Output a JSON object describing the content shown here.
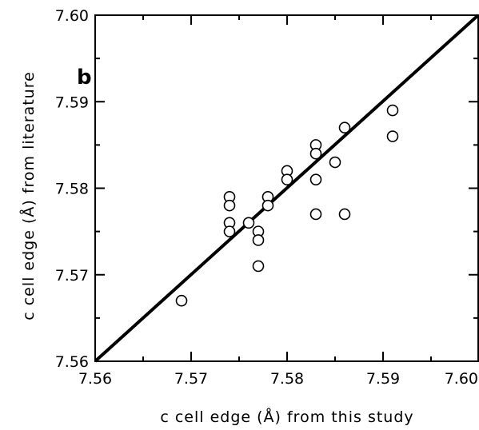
{
  "chart_data": {
    "type": "scatter",
    "panel_label": "b",
    "xlabel": "c  cell edge (Å) from this study",
    "ylabel": "c  cell edge (Å) from literature",
    "xlim": [
      7.56,
      7.6
    ],
    "ylim": [
      7.56,
      7.6
    ],
    "x_ticks": [
      "7.56",
      "7.57",
      "7.58",
      "7.59",
      "7.60"
    ],
    "y_ticks": [
      "7.56",
      "7.57",
      "7.58",
      "7.59",
      "7.60"
    ],
    "grid": false,
    "reference_line": {
      "from": [
        7.56,
        7.56
      ],
      "to": [
        7.6,
        7.6
      ]
    },
    "points": [
      {
        "x": 7.569,
        "y": 7.567
      },
      {
        "x": 7.574,
        "y": 7.579
      },
      {
        "x": 7.574,
        "y": 7.578
      },
      {
        "x": 7.574,
        "y": 7.576
      },
      {
        "x": 7.574,
        "y": 7.575
      },
      {
        "x": 7.576,
        "y": 7.576
      },
      {
        "x": 7.577,
        "y": 7.575
      },
      {
        "x": 7.577,
        "y": 7.574
      },
      {
        "x": 7.577,
        "y": 7.571
      },
      {
        "x": 7.578,
        "y": 7.579
      },
      {
        "x": 7.578,
        "y": 7.578
      },
      {
        "x": 7.58,
        "y": 7.582
      },
      {
        "x": 7.58,
        "y": 7.581
      },
      {
        "x": 7.583,
        "y": 7.585
      },
      {
        "x": 7.583,
        "y": 7.584
      },
      {
        "x": 7.583,
        "y": 7.581
      },
      {
        "x": 7.583,
        "y": 7.577
      },
      {
        "x": 7.585,
        "y": 7.583
      },
      {
        "x": 7.586,
        "y": 7.587
      },
      {
        "x": 7.586,
        "y": 7.577
      },
      {
        "x": 7.591,
        "y": 7.589
      },
      {
        "x": 7.591,
        "y": 7.586
      }
    ],
    "marker": "open-circle",
    "colors": {
      "line": "#000000",
      "marker_edge": "#000000",
      "marker_fill": "#ffffff"
    }
  }
}
